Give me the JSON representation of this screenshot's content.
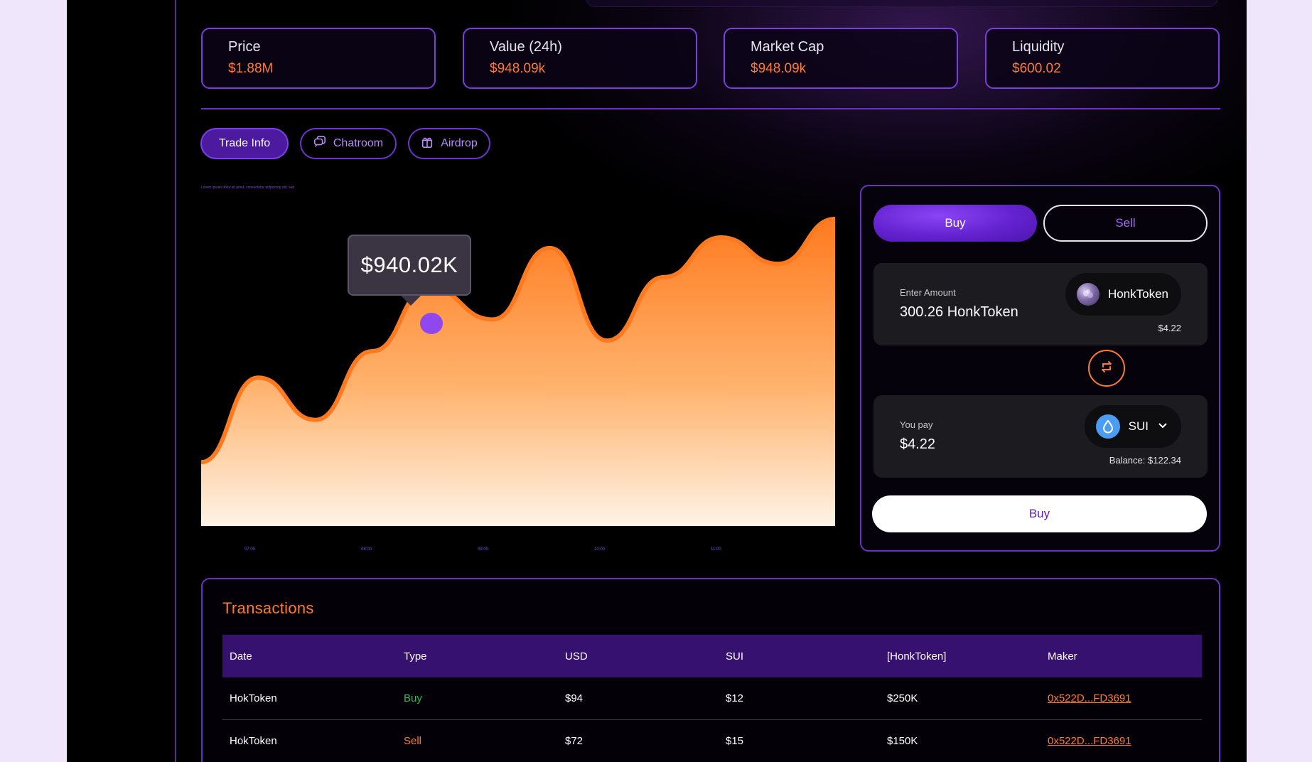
{
  "stats": [
    {
      "label": "Price",
      "value": "$1.88M"
    },
    {
      "label": "Value (24h)",
      "value": "$948.09k"
    },
    {
      "label": "Market Cap",
      "value": "$948.09k"
    },
    {
      "label": "Liquidity",
      "value": "$600.02"
    }
  ],
  "tabs": [
    {
      "label": "Trade Info",
      "active": true
    },
    {
      "label": "Chatroom",
      "icon": "chat-icon"
    },
    {
      "label": "Airdrop",
      "icon": "gift-icon"
    }
  ],
  "chart_note": "Lorem ipsum dolor sit amet, consectetur adipiscing elit, sed",
  "chart_tooltip": "$940.02K",
  "chart_data": {
    "type": "area",
    "x": [
      "07:00",
      "08:00",
      "09:00",
      "10:00",
      "11:00"
    ],
    "points": [
      [
        0,
        8
      ],
      [
        0.09,
        40
      ],
      [
        0.18,
        24
      ],
      [
        0.27,
        50
      ],
      [
        0.36,
        74
      ],
      [
        0.46,
        62
      ],
      [
        0.55,
        89
      ],
      [
        0.64,
        54
      ],
      [
        0.73,
        78
      ],
      [
        0.82,
        93
      ],
      [
        0.91,
        83
      ],
      [
        1,
        100
      ]
    ],
    "highlight": {
      "x": 0.36,
      "label": "$940.02K"
    },
    "colors": {
      "line": "#ff7a1f",
      "fill_top": "#ff7a1f",
      "fill_bottom": "#fff3e6",
      "marker": "#9047ee"
    }
  },
  "swap": {
    "buy_tab": "Buy",
    "sell_tab": "Sell",
    "enter_amount_label": "Enter Amount",
    "enter_amount_value": "300.26 HonkToken",
    "token_name": "HonkToken",
    "token_usd": "$4.22",
    "pay_label": "You pay",
    "pay_value": "$4.22",
    "pay_token": "SUI",
    "balance_label": "Balance:",
    "balance_value": "$122.34",
    "submit": "Buy"
  },
  "transactions": {
    "title": "Transactions",
    "columns": [
      "Date",
      "Type",
      "USD",
      "SUI",
      "[HonkToken]",
      "Maker"
    ],
    "rows": [
      {
        "date": "HokToken",
        "type": "Buy",
        "usd": "$94",
        "sui": "$12",
        "honk": "$250K",
        "maker": "0x522D...FD3691"
      },
      {
        "date": "HokToken",
        "type": "Sell",
        "usd": "$72",
        "sui": "$15",
        "honk": "$150K",
        "maker": "0x522D...FD3691"
      }
    ]
  },
  "colors": {
    "accent": "#7a3de0",
    "orange": "#ff7a2e",
    "buy": "#2fbf4f"
  }
}
